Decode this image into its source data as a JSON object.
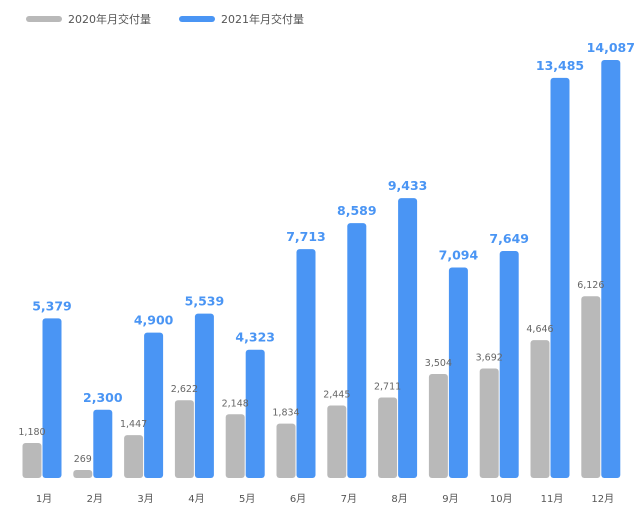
{
  "chart_data": {
    "type": "bar",
    "title": "",
    "xlabel": "",
    "ylabel": "",
    "categories": [
      "1月",
      "2月",
      "3月",
      "4月",
      "5月",
      "6月",
      "7月",
      "8月",
      "9月",
      "10月",
      "11月",
      "12月"
    ],
    "series": [
      {
        "name": "2020年月交付量",
        "color": "#b9b9b9",
        "values": [
          1180,
          269,
          1447,
          2622,
          2148,
          1834,
          2445,
          2711,
          3504,
          3692,
          4646,
          6126
        ],
        "labels": [
          "1,180",
          "269",
          "1,447",
          "2,622",
          "2,148",
          "1,834",
          "2,445",
          "2,711",
          "3,504",
          "3,692",
          "4,646",
          "6,126"
        ]
      },
      {
        "name": "2021年月交付量",
        "color": "#4a95f4",
        "values": [
          5379,
          2300,
          4900,
          5539,
          4323,
          7713,
          8589,
          9433,
          7094,
          7649,
          13485,
          14087
        ],
        "labels": [
          "5,379",
          "2,300",
          "4,900",
          "5,539",
          "4,323",
          "7,713",
          "8,589",
          "9,433",
          "7,094",
          "7,649",
          "13,485",
          "14,087"
        ]
      }
    ],
    "grid": false,
    "legend_position": "top-left",
    "label_color_2021": "#4a95f4",
    "label_color_2020": "#666666"
  }
}
